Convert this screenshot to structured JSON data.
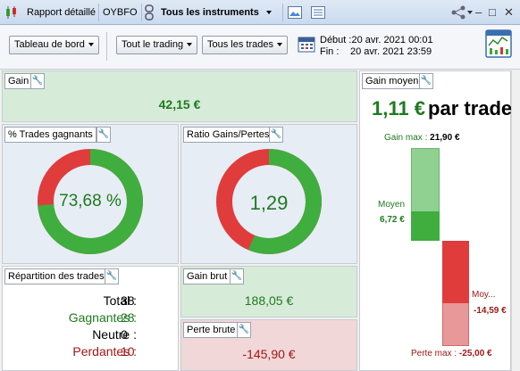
{
  "titlebar": {
    "tab_report": "Rapport détaillé",
    "tab_account": "OYBFO",
    "instruments_label": "Tous les instruments",
    "window_min": "‒",
    "window_max": "□",
    "window_close": "✕"
  },
  "toolbar": {
    "dashboard_label": "Tableau de bord",
    "trading_filter": "Tout le trading",
    "trades_filter": "Tous les trades",
    "start_label": "Début :",
    "start_value": "20 avr. 2021 00:01",
    "end_label": "Fin :",
    "end_value": "20 avr. 2021 23:59"
  },
  "gain": {
    "title": "Gain",
    "value": "42,15 €"
  },
  "win_rate": {
    "title": "% Trades gagnants",
    "label": "73,68 %",
    "fraction": 0.7368
  },
  "ratio": {
    "title": "Ratio Gains/Pertes",
    "label": "1,29",
    "fraction": 0.5633
  },
  "repartition": {
    "title": "Répartition des trades",
    "rows": [
      {
        "label": "Total :",
        "value": "38"
      },
      {
        "label": "Gagnantes :",
        "value": "28"
      },
      {
        "label": "Neutre :",
        "value": "0"
      },
      {
        "label": "Perdantes :",
        "value": "10"
      }
    ]
  },
  "gain_brut": {
    "title": "Gain brut",
    "value": "188,05 €"
  },
  "perte_brute": {
    "title": "Perte brute",
    "value": "-145,90 €"
  },
  "gain_moyen": {
    "title": "Gain moyen",
    "headline_value": "1,11 €",
    "headline_suffix": "par trade",
    "gain_max_label": "Gain max :",
    "gain_max_value": "21,90 €",
    "moyen_label": "Moyen",
    "moyen_value": "6,72 €",
    "loss_moy_label": "Moy...",
    "loss_moy_value": "-14,59 €",
    "perte_max_label": "Perte max :",
    "perte_max_value": "-25,00 €"
  },
  "colors": {
    "green": "#3fae3f",
    "red": "#e03c3c",
    "dark_green": "#1f7a1f",
    "dark_red": "#a01818"
  }
}
